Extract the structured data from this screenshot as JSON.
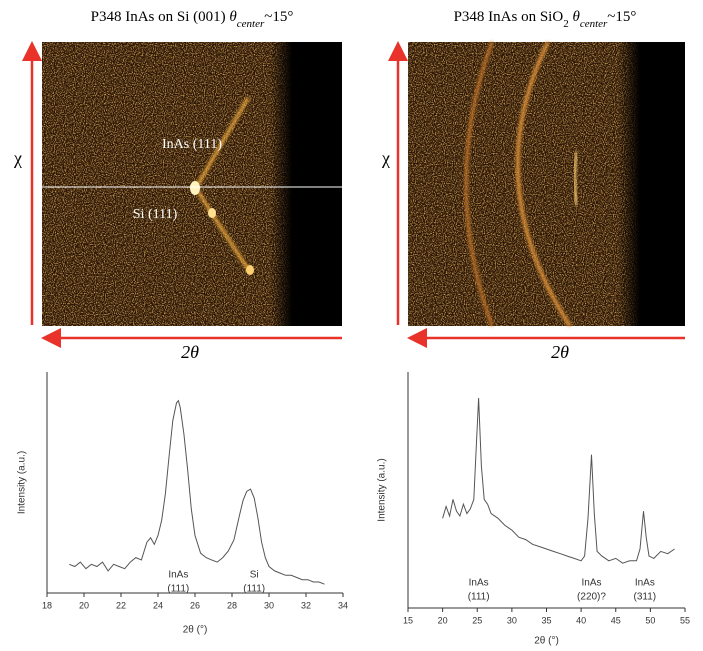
{
  "chart_data": [
    {
      "type": "image",
      "title": [
        "P348 InAs on Si (001) ",
        "θ",
        "center",
        "~15°"
      ],
      "title_italic": [
        1,
        2
      ],
      "title_subscripts": [
        2
      ],
      "xlabel": "2θ",
      "ylabel": "χ",
      "annotations": [
        "InAs (111)",
        "Si (111)"
      ]
    },
    {
      "type": "image",
      "title": [
        "P348 InAs on SiO",
        "2",
        " θ",
        "center",
        "~15°"
      ],
      "title_italic": [
        2,
        3
      ],
      "title_subscripts": [
        1,
        3
      ],
      "xlabel": "2θ",
      "ylabel": "χ",
      "annotations": []
    },
    {
      "type": "line",
      "xlabel": "2θ (°)",
      "ylabel": "Intensity (a.u.)",
      "xlim": [
        18,
        34
      ],
      "xticks": [
        18,
        20,
        22,
        24,
        26,
        28,
        30,
        32,
        34
      ],
      "ylim": [
        0,
        10
      ],
      "color": "#555555",
      "x": [
        19.2,
        19.5,
        19.8,
        20.1,
        20.4,
        20.7,
        21,
        21.3,
        21.6,
        21.9,
        22.2,
        22.5,
        22.8,
        23.1,
        23.4,
        23.6,
        23.8,
        24,
        24.2,
        24.4,
        24.6,
        24.8,
        25,
        25.1,
        25.2,
        25.4,
        25.6,
        25.8,
        26,
        26.3,
        26.6,
        26.9,
        27.2,
        27.5,
        27.8,
        28.1,
        28.4,
        28.6,
        28.8,
        29,
        29.2,
        29.4,
        29.6,
        29.8,
        30,
        30.3,
        30.6,
        30.9,
        31.2,
        31.5,
        31.8,
        32.1,
        32.4,
        32.7,
        33
      ],
      "values": [
        1.3,
        1.2,
        1.4,
        1.1,
        1.3,
        1.2,
        1.4,
        1.0,
        1.3,
        1.2,
        1.1,
        1.4,
        1.6,
        1.5,
        2.3,
        2.5,
        2.2,
        2.6,
        3.3,
        4.5,
        6.2,
        7.8,
        8.6,
        8.7,
        8.4,
        7.2,
        5.6,
        3.8,
        2.6,
        1.8,
        1.6,
        1.5,
        1.4,
        1.6,
        1.9,
        2.4,
        3.5,
        4.2,
        4.6,
        4.7,
        4.3,
        3.4,
        2.3,
        1.6,
        1.2,
        1.0,
        0.9,
        0.8,
        0.8,
        0.7,
        0.6,
        0.6,
        0.5,
        0.5,
        0.4
      ],
      "annotations": [
        [
          "InAs",
          "(111)"
        ],
        [
          "Si",
          "(111)"
        ]
      ]
    },
    {
      "type": "line",
      "xlabel": "2θ (°)",
      "ylabel": "Intensity (a.u.)",
      "xlim": [
        15,
        55
      ],
      "xticks": [
        15,
        20,
        25,
        30,
        35,
        40,
        45,
        50,
        55
      ],
      "ylim": [
        0,
        10
      ],
      "color": "#555555",
      "x": [
        20,
        20.5,
        21,
        21.5,
        22,
        22.5,
        23,
        23.5,
        24,
        24.5,
        24.8,
        25.2,
        25.6,
        26,
        26.5,
        27,
        28,
        29,
        30,
        31,
        32,
        33,
        34,
        35,
        36,
        37,
        38,
        39,
        40,
        40.5,
        41,
        41.5,
        41.9,
        42.3,
        43,
        44,
        45,
        46,
        47,
        48,
        48.5,
        49,
        49.4,
        49.8,
        50.5,
        51.5,
        52.5,
        53.5
      ],
      "values": [
        3.8,
        4.3,
        3.9,
        4.6,
        4.1,
        3.9,
        4.4,
        4.0,
        4.2,
        4.6,
        6.5,
        8.9,
        6.0,
        4.6,
        4.4,
        4.0,
        3.8,
        3.5,
        3.3,
        3.0,
        2.9,
        2.7,
        2.6,
        2.5,
        2.4,
        2.3,
        2.2,
        2.1,
        2.0,
        2.2,
        3.8,
        6.5,
        4.0,
        2.4,
        2.2,
        2.0,
        2.1,
        1.9,
        2.0,
        2.0,
        2.5,
        4.1,
        3.0,
        2.2,
        2.1,
        2.4,
        2.3,
        2.5
      ],
      "annotations": [
        [
          "InAs",
          "(111)"
        ],
        [
          "InAs",
          "(220)?"
        ],
        [
          "InAs",
          "(311)"
        ]
      ]
    }
  ]
}
